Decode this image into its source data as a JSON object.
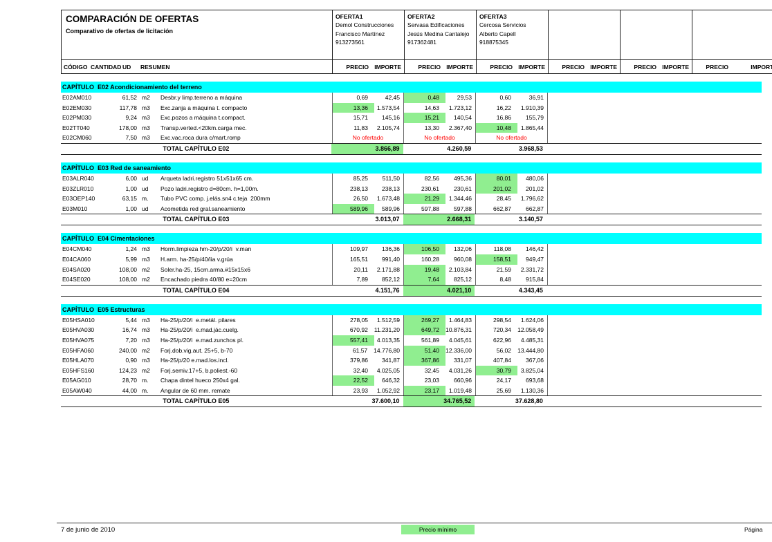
{
  "report": {
    "title": "COMPARACIÓN DE OFERTAS",
    "subtitle": "Comparativo de ofertas de licitación",
    "colors": {
      "min_highlight": "#90EE90",
      "chapter_band": "#00FFFF",
      "not_offered": "#FF0000"
    },
    "columns": {
      "code": "CÓDIGO",
      "quantity": "CANTIDAD",
      "unit": "UD",
      "summary": "RESUMEN",
      "price": "PRECIO",
      "amount": "IMPORTE"
    },
    "offers": [
      {
        "label": "OFERTA1",
        "company": "Demol Construcciones",
        "contact": "Francisco Martínez",
        "phone": "913273561"
      },
      {
        "label": "OFERTA2",
        "company": "Servasa Edificaciones",
        "contact": "Jesús Medina Cantalejo",
        "phone": "917362481"
      },
      {
        "label": "OFERTA3",
        "company": "Cercosa Servicios",
        "contact": "Alberto Capell",
        "phone": "918875345"
      }
    ],
    "extra_empty_offer_columns": 3,
    "chapters": [
      {
        "title": "CAPÍTULO  E02 Acondicionamiento del terreno",
        "total_label": "TOTAL CAPÍTULO E02",
        "rows": [
          {
            "code": "E02AM010",
            "qty": "61,52",
            "unit": "m2",
            "summary": "Desbr.y limp.terreno a máquina",
            "offers": [
              {
                "price": "0,69",
                "amount": "42,45",
                "min": false
              },
              {
                "price": "0,48",
                "amount": "29,53",
                "min": true
              },
              {
                "price": "0,60",
                "amount": "36,91",
                "min": false
              }
            ]
          },
          {
            "code": "E02EM030",
            "qty": "117,78",
            "unit": "m3",
            "summary": "Exc.zanja a máquina t. compacto",
            "offers": [
              {
                "price": "13,36",
                "amount": "1.573,54",
                "min": true
              },
              {
                "price": "14,63",
                "amount": "1.723,12",
                "min": false
              },
              {
                "price": "16,22",
                "amount": "1.910,39",
                "min": false
              }
            ]
          },
          {
            "code": "E02PM030",
            "qty": "9,24",
            "unit": "m3",
            "summary": "Exc.pozos a máquina t.compact.",
            "offers": [
              {
                "price": "15,71",
                "amount": "145,16",
                "min": false
              },
              {
                "price": "15,21",
                "amount": "140,54",
                "min": true
              },
              {
                "price": "16,86",
                "amount": "155,79",
                "min": false
              }
            ]
          },
          {
            "code": "E02TT040",
            "qty": "178,00",
            "unit": "m3",
            "summary": "Transp.verted.<20km.carga mec.",
            "offers": [
              {
                "price": "11,83",
                "amount": "2.105,74",
                "min": false
              },
              {
                "price": "13,30",
                "amount": "2.367,40",
                "min": false
              },
              {
                "price": "10,48",
                "amount": "1.865,44",
                "min": true
              }
            ]
          },
          {
            "code": "E02CM060",
            "qty": "7,50",
            "unit": "m3",
            "summary": "Exc.vac.roca dura c/mart.romp",
            "not_offered": "No ofertado"
          }
        ],
        "totals": [
          "3.866,89",
          "4.260,59",
          "3.968,53"
        ],
        "min_total_index": 0
      },
      {
        "title": "CAPÍTULO  E03 Red de saneamiento",
        "total_label": "TOTAL CAPÍTULO E03",
        "rows": [
          {
            "code": "E03ALR040",
            "qty": "6,00",
            "unit": "ud",
            "summary": "Arqueta ladri.registro 51x51x65 cm.",
            "offers": [
              {
                "price": "85,25",
                "amount": "511,50",
                "min": false
              },
              {
                "price": "82,56",
                "amount": "495,36",
                "min": false
              },
              {
                "price": "80,01",
                "amount": "480,06",
                "min": true
              }
            ]
          },
          {
            "code": "E03ZLR010",
            "qty": "1,00",
            "unit": "ud",
            "summary": "Pozo ladri.registro d=80cm. h=1,00m.",
            "offers": [
              {
                "price": "238,13",
                "amount": "238,13",
                "min": false
              },
              {
                "price": "230,61",
                "amount": "230,61",
                "min": false
              },
              {
                "price": "201,02",
                "amount": "201,02",
                "min": true
              }
            ]
          },
          {
            "code": "E03OEP140",
            "qty": "63,15",
            "unit": "m.",
            "summary": "Tubo PVC comp. j.elás.sn4 c.teja  200mm",
            "offers": [
              {
                "price": "26,50",
                "amount": "1.673,48",
                "min": false
              },
              {
                "price": "21,29",
                "amount": "1.344,46",
                "min": true
              },
              {
                "price": "28,45",
                "amount": "1.796,62",
                "min": false
              }
            ]
          },
          {
            "code": "E03M010",
            "qty": "1,00",
            "unit": "ud",
            "summary": "Acometida red gral.saneamiento",
            "offers": [
              {
                "price": "589,96",
                "amount": "589,96",
                "min": true
              },
              {
                "price": "597,88",
                "amount": "597,88",
                "min": false
              },
              {
                "price": "662,87",
                "amount": "662,87",
                "min": false
              }
            ]
          }
        ],
        "totals": [
          "3.013,07",
          "2.668,31",
          "3.140,57"
        ],
        "min_total_index": 1
      },
      {
        "title": "CAPÍTULO  E04 Cimentaciones",
        "total_label": "TOTAL CAPÍTULO E04",
        "rows": [
          {
            "code": "E04CM040",
            "qty": "1,24",
            "unit": "m3",
            "summary": "Horm.limpieza hm-20/p/20/i  v.man",
            "offers": [
              {
                "price": "109,97",
                "amount": "136,36",
                "min": false
              },
              {
                "price": "106,50",
                "amount": "132,06",
                "min": true
              },
              {
                "price": "118,08",
                "amount": "146,42",
                "min": false
              }
            ]
          },
          {
            "code": "E04CA060",
            "qty": "5,99",
            "unit": "m3",
            "summary": "H.arm. ha-25/p/40/iia v.grúa",
            "offers": [
              {
                "price": "165,51",
                "amount": "991,40",
                "min": false
              },
              {
                "price": "160,28",
                "amount": "960,08",
                "min": false
              },
              {
                "price": "158,51",
                "amount": "949,47",
                "min": true
              }
            ]
          },
          {
            "code": "E04SA020",
            "qty": "108,00",
            "unit": "m2",
            "summary": "Soler.ha-25, 15cm.arma.#15x15x6",
            "offers": [
              {
                "price": "20,11",
                "amount": "2.171,88",
                "min": false
              },
              {
                "price": "19,48",
                "amount": "2.103,84",
                "min": true
              },
              {
                "price": "21,59",
                "amount": "2.331,72",
                "min": false
              }
            ]
          },
          {
            "code": "E04SE020",
            "qty": "108,00",
            "unit": "m2",
            "summary": "Encachado piedra 40/80 e=20cm",
            "offers": [
              {
                "price": "7,89",
                "amount": "852,12",
                "min": false
              },
              {
                "price": "7,64",
                "amount": "825,12",
                "min": true
              },
              {
                "price": "8,48",
                "amount": "915,84",
                "min": false
              }
            ]
          }
        ],
        "totals": [
          "4.151,76",
          "4.021,10",
          "4.343,45"
        ],
        "min_total_index": 1
      },
      {
        "title": "CAPÍTULO  E05 Estructuras",
        "total_label": "TOTAL CAPÍTULO E05",
        "rows": [
          {
            "code": "E05HSA010",
            "qty": "5,44",
            "unit": "m3",
            "summary": "Ha-25/p/20/i  e.metál. pilares",
            "offers": [
              {
                "price": "278,05",
                "amount": "1.512,59",
                "min": false
              },
              {
                "price": "269,27",
                "amount": "1.464,83",
                "min": true
              },
              {
                "price": "298,54",
                "amount": "1.624,06",
                "min": false
              }
            ]
          },
          {
            "code": "E05HVA030",
            "qty": "16,74",
            "unit": "m3",
            "summary": "Ha-25/p/20/i  e.mad.jác.cuelg.",
            "offers": [
              {
                "price": "670,92",
                "amount": "11.231,20",
                "min": false
              },
              {
                "price": "649,72",
                "amount": "10.876,31",
                "min": true
              },
              {
                "price": "720,34",
                "amount": "12.058,49",
                "min": false
              }
            ]
          },
          {
            "code": "E05HVA075",
            "qty": "7,20",
            "unit": "m3",
            "summary": "Ha-25/p/20/i  e.mad.zunchos pl.",
            "offers": [
              {
                "price": "557,41",
                "amount": "4.013,35",
                "min": true
              },
              {
                "price": "561,89",
                "amount": "4.045,61",
                "min": false
              },
              {
                "price": "622,96",
                "amount": "4.485,31",
                "min": false
              }
            ]
          },
          {
            "code": "E05HFA060",
            "qty": "240,00",
            "unit": "m2",
            "summary": "Forj.dob.vig.aut. 25+5, b-70",
            "offers": [
              {
                "price": "61,57",
                "amount": "14.776,80",
                "min": false
              },
              {
                "price": "51,40",
                "amount": "12.336,00",
                "min": true
              },
              {
                "price": "56,02",
                "amount": "13.444,80",
                "min": false
              }
            ]
          },
          {
            "code": "E05HLA070",
            "qty": "0,90",
            "unit": "m3",
            "summary": "Ha-25/p/20 e.mad.los.incl.",
            "offers": [
              {
                "price": "379,86",
                "amount": "341,87",
                "min": false
              },
              {
                "price": "367,86",
                "amount": "331,07",
                "min": true
              },
              {
                "price": "407,84",
                "amount": "367,06",
                "min": false
              }
            ]
          },
          {
            "code": "E05HFS160",
            "qty": "124,23",
            "unit": "m2",
            "summary": "Forj.semiv.17+5, b.poliest.-60",
            "offers": [
              {
                "price": "32,40",
                "amount": "4.025,05",
                "min": false
              },
              {
                "price": "32,45",
                "amount": "4.031,26",
                "min": false
              },
              {
                "price": "30,79",
                "amount": "3.825,04",
                "min": true
              }
            ]
          },
          {
            "code": "E05AG010",
            "qty": "28,70",
            "unit": "m.",
            "summary": "Chapa dintel hueco 250x4 gal.",
            "offers": [
              {
                "price": "22,52",
                "amount": "646,32",
                "min": true
              },
              {
                "price": "23,03",
                "amount": "660,96",
                "min": false
              },
              {
                "price": "24,17",
                "amount": "693,68",
                "min": false
              }
            ]
          },
          {
            "code": "E05AW040",
            "qty": "44,00",
            "unit": "m.",
            "summary": "Angular de 60 mm. remate",
            "offers": [
              {
                "price": "23,93",
                "amount": "1.052,92",
                "min": false
              },
              {
                "price": "23,17",
                "amount": "1.019,48",
                "min": true
              },
              {
                "price": "25,69",
                "amount": "1.130,36",
                "min": false
              }
            ]
          }
        ],
        "totals": [
          "37.600,10",
          "34.765,52",
          "37.628,80"
        ],
        "min_total_index": 1
      }
    ],
    "footer": {
      "date": "7 de junio de 2010",
      "legend": "Precio mínimo",
      "page_label": "Página"
    }
  }
}
